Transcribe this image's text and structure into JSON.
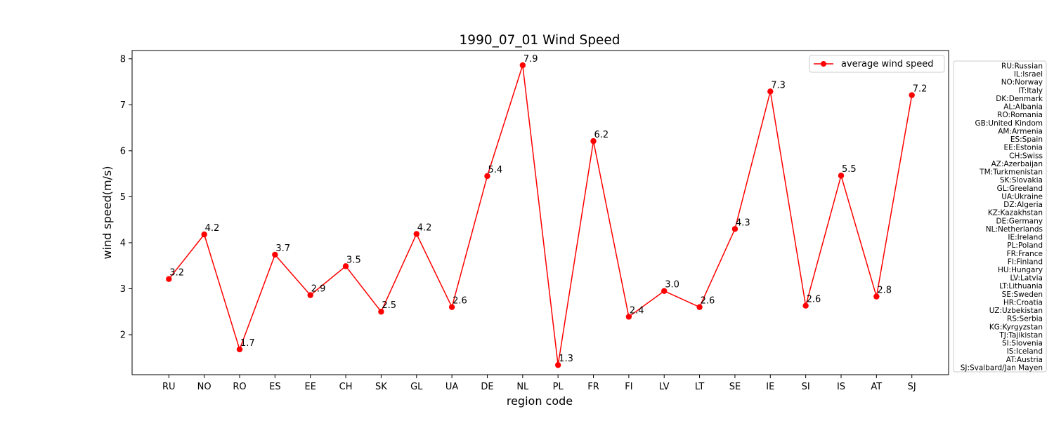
{
  "chart_data": {
    "type": "line",
    "title": "1990_07_01 Wind Speed",
    "xlabel": "region code",
    "ylabel": "wind speed(m/s)",
    "categories": [
      "RU",
      "NO",
      "RO",
      "ES",
      "EE",
      "CH",
      "SK",
      "GL",
      "UA",
      "DE",
      "NL",
      "PL",
      "FR",
      "FI",
      "LV",
      "LT",
      "SE",
      "IE",
      "SI",
      "IS",
      "AT",
      "SJ"
    ],
    "series": [
      {
        "name": "average wind speed",
        "color": "#ff0000",
        "values": [
          3.21,
          4.18,
          1.68,
          3.74,
          2.86,
          3.49,
          2.5,
          4.19,
          2.6,
          5.45,
          7.86,
          1.34,
          6.21,
          2.39,
          2.95,
          2.6,
          4.3,
          7.29,
          2.63,
          5.46,
          2.83,
          7.21
        ]
      }
    ],
    "data_labels": [
      "3.2",
      "4.2",
      "1.7",
      "3.7",
      "2.9",
      "3.5",
      "2.5",
      "4.2",
      "2.6",
      "5.4",
      "7.9",
      "1.3",
      "6.2",
      "2.4",
      "3.0",
      "2.6",
      "4.3",
      "7.3",
      "2.6",
      "5.5",
      "2.8",
      "7.2"
    ],
    "yticks": [
      2,
      3,
      4,
      5,
      6,
      7,
      8
    ],
    "ylim": [
      1.13,
      8.18
    ],
    "grid": false,
    "legend_placement": "top-right",
    "region_key": [
      "RU:Russian",
      "IL:Israel",
      "NO:Norway",
      "IT:Italy",
      "DK:Denmark",
      "AL:Albania",
      "RO:Romania",
      "GB:United Kindom",
      "AM:Armenia",
      "ES:Spain",
      "EE:Estonia",
      "CH:Swiss",
      "AZ:Azerbaijan",
      "TM:Turkmenistan",
      "SK:Slovakia",
      "GL:Greeland",
      "UA:Ukraine",
      "DZ:Algeria",
      "KZ:Kazakhstan",
      "DE:Germany",
      "NL:Netherlands",
      "IE:Ireland",
      "PL:Poland",
      "FR:France",
      "FI:Finland",
      "HU:Hungary",
      "LV:Latvia",
      "LT:Lithuania",
      "SE:Sweden",
      "HR:Croatia",
      "UZ:Uzbekistan",
      "RS:Serbia",
      "KG:Kyrgyzstan",
      "TJ:Tajikistan",
      "SI:Slovenia",
      "IS:Iceland",
      "AT:Austria",
      "SJ:Svalbard/Jan Mayen"
    ]
  }
}
